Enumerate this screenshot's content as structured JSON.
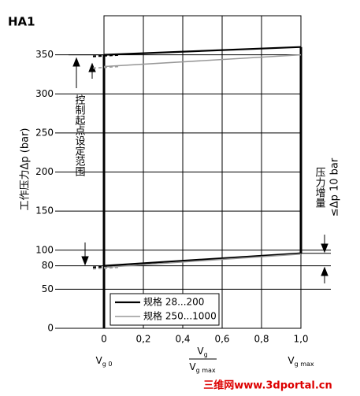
{
  "chart_data": {
    "type": "line",
    "title": "HA1",
    "y_label": "工作压力Δp (bar)",
    "xlim": [
      0,
      1
    ],
    "ylim": [
      0,
      400
    ],
    "xticks": [
      0,
      {
        "value": 0.2,
        "label": "0,2"
      },
      {
        "value": 0.4,
        "label": "0,4"
      },
      {
        "value": 0.6,
        "label": "0,6"
      },
      {
        "value": 0.8,
        "label": "0,8"
      },
      {
        "value": 1,
        "label": "1,0"
      }
    ],
    "yticks": [
      0,
      50,
      80,
      100,
      150,
      200,
      250,
      300,
      350
    ],
    "grid": true,
    "x_labels": {
      "left": {
        "main": "V",
        "sub": "g 0"
      },
      "center_num": {
        "main": "V",
        "sub": "g"
      },
      "center_den": {
        "main": "V",
        "sub": "g max"
      },
      "right": {
        "main": "V",
        "sub": "g max"
      }
    },
    "annotations": {
      "setting_range": "控制起点设定范围",
      "increase": "压力增量",
      "increase_value": "≤Δp 10 bar",
      "watermark": "三维网www.3dportal.cn"
    },
    "x": [
      0,
      1
    ],
    "series": [
      {
        "name": "规格 28...200",
        "color": "#000000",
        "upper": [
          350,
          360
        ],
        "lower": [
          80,
          96
        ]
      },
      {
        "name": "规格 250...1000",
        "color": "#999999",
        "upper": [
          335,
          350
        ],
        "lower": [
          78,
          95
        ]
      }
    ]
  }
}
